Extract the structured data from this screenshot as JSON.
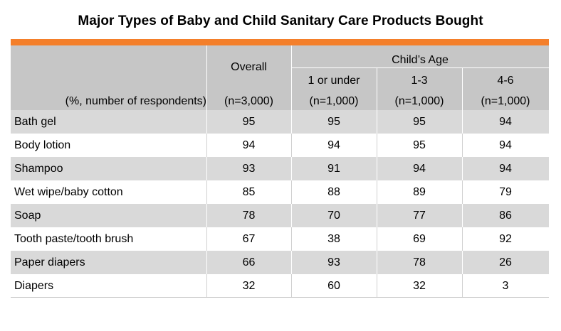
{
  "chart_data": {
    "type": "table",
    "title": "Major Types of Baby and Child Sanitary Care Products Bought",
    "row_header_label": "(%, number of respondents)",
    "group_header": "Child’s Age",
    "columns": [
      {
        "name": "Overall",
        "n": "(n=3,000)"
      },
      {
        "name": "1 or under",
        "n": "(n=1,000)"
      },
      {
        "name": "1-3",
        "n": "(n=1,000)"
      },
      {
        "name": "4-6",
        "n": "(n=1,000)"
      }
    ],
    "rows": [
      {
        "label": "Bath gel",
        "values": [
          95,
          95,
          95,
          94
        ]
      },
      {
        "label": "Body lotion",
        "values": [
          94,
          94,
          95,
          94
        ]
      },
      {
        "label": "Shampoo",
        "values": [
          93,
          91,
          94,
          94
        ]
      },
      {
        "label": "Wet wipe/baby cotton",
        "values": [
          85,
          88,
          89,
          79
        ]
      },
      {
        "label": "Soap",
        "values": [
          78,
          70,
          77,
          86
        ]
      },
      {
        "label": "Tooth paste/tooth brush",
        "values": [
          67,
          38,
          69,
          92
        ]
      },
      {
        "label": "Paper diapers",
        "values": [
          66,
          93,
          78,
          26
        ]
      },
      {
        "label": "Diapers",
        "values": [
          32,
          60,
          32,
          3
        ]
      }
    ]
  },
  "colors": {
    "accent": "#f47f2a",
    "header_bg": "#c6c6c6",
    "row_shade": "#d9d9d9"
  }
}
